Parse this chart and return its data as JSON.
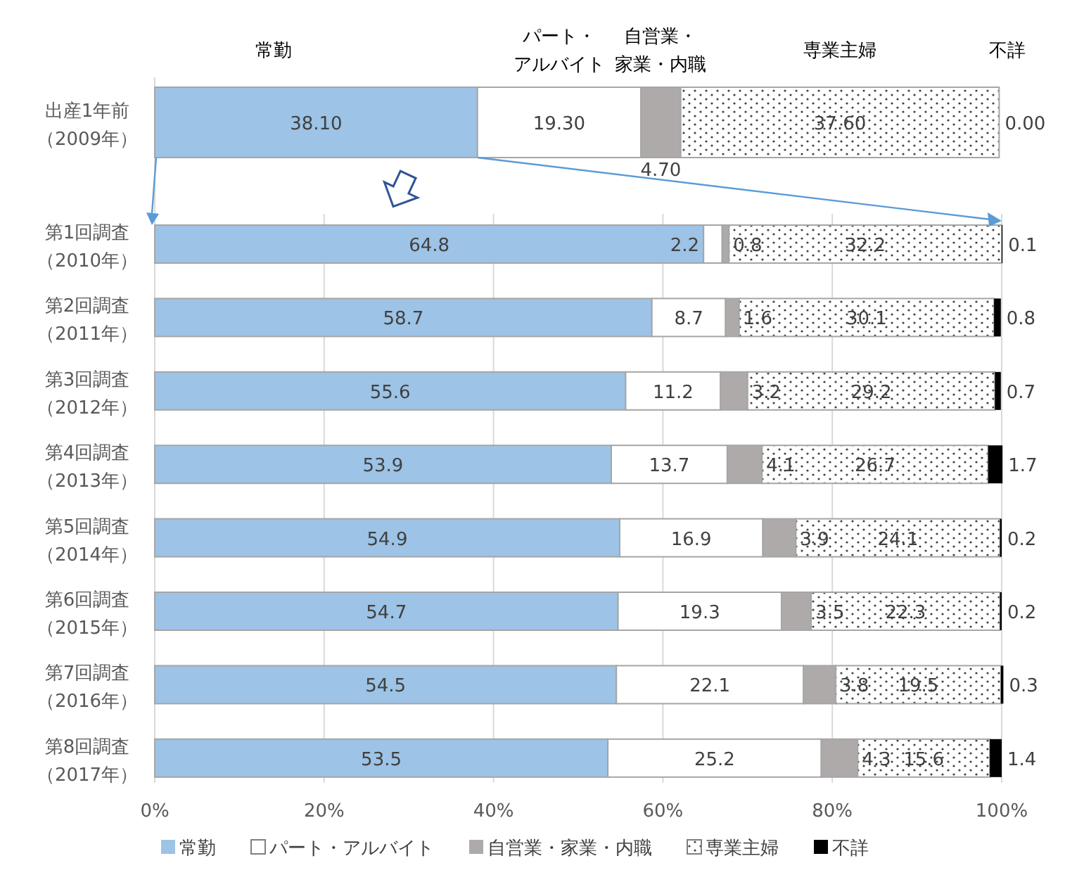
{
  "chart_data": {
    "type": "bar",
    "orientation": "horizontal",
    "stacked": true,
    "categories": [
      "出産1年前（2009年）",
      "第1回調査（2010年）",
      "第2回調査（2011年）",
      "第3回調査（2012年）",
      "第4回調査（2013年）",
      "第5回調査（2014年）",
      "第6回調査（2015年）",
      "第7回調査（2016年）",
      "第8回調査（2017年）"
    ],
    "series": [
      {
        "name": "常勤",
        "color": "#9dc3e6",
        "values": [
          38.1,
          64.8,
          58.7,
          55.6,
          53.9,
          54.9,
          54.7,
          54.5,
          53.5
        ],
        "value_labels": [
          "38.10",
          "64.8",
          "58.7",
          "55.6",
          "53.9",
          "54.9",
          "54.7",
          "54.5",
          "53.5"
        ]
      },
      {
        "name": "パート・アルバイト",
        "color": "#ffffff",
        "values": [
          19.3,
          2.2,
          8.7,
          11.2,
          13.7,
          16.9,
          19.3,
          22.1,
          25.2
        ],
        "value_labels": [
          "19.30",
          "2.2",
          "8.7",
          "11.2",
          "13.7",
          "16.9",
          "19.3",
          "22.1",
          "25.2"
        ]
      },
      {
        "name": "自営業・家業・内職",
        "color": "#aeaaaa",
        "values": [
          4.7,
          0.8,
          1.6,
          3.2,
          4.1,
          3.9,
          3.5,
          3.8,
          4.3
        ],
        "value_labels": [
          "4.70",
          "0.8",
          "1.6",
          "3.2",
          "4.1",
          "3.9",
          "3.5",
          "3.8",
          "4.3"
        ]
      },
      {
        "name": "専業主婦",
        "color": "#a6a6a6",
        "values": [
          37.6,
          32.2,
          30.1,
          29.2,
          26.7,
          24.1,
          22.3,
          19.5,
          15.6
        ],
        "value_labels": [
          "37.60",
          "32.2",
          "30.1",
          "29.2",
          "26.7",
          "24.1",
          "22.3",
          "19.5",
          "15.6"
        ]
      },
      {
        "name": "不詳",
        "color": "#000000",
        "values": [
          0,
          0.1,
          0.8,
          0.7,
          1.7,
          0.2,
          0.2,
          0.3,
          1.4
        ],
        "value_labels": [
          "0.00",
          "0.1",
          "0.8",
          "0.7",
          "1.7",
          "0.2",
          "0.2",
          "0.3",
          "1.4"
        ]
      }
    ],
    "xlim": [
      0,
      100
    ],
    "xticks": [
      {
        "value": 0,
        "label": "0%"
      },
      {
        "value": 20,
        "label": "20%"
      },
      {
        "value": 40,
        "label": "40%"
      },
      {
        "value": 60,
        "label": "60%"
      },
      {
        "value": 80,
        "label": "80%"
      },
      {
        "value": 100,
        "label": "100%"
      }
    ],
    "grid": "x",
    "legend": "bottom"
  }
}
